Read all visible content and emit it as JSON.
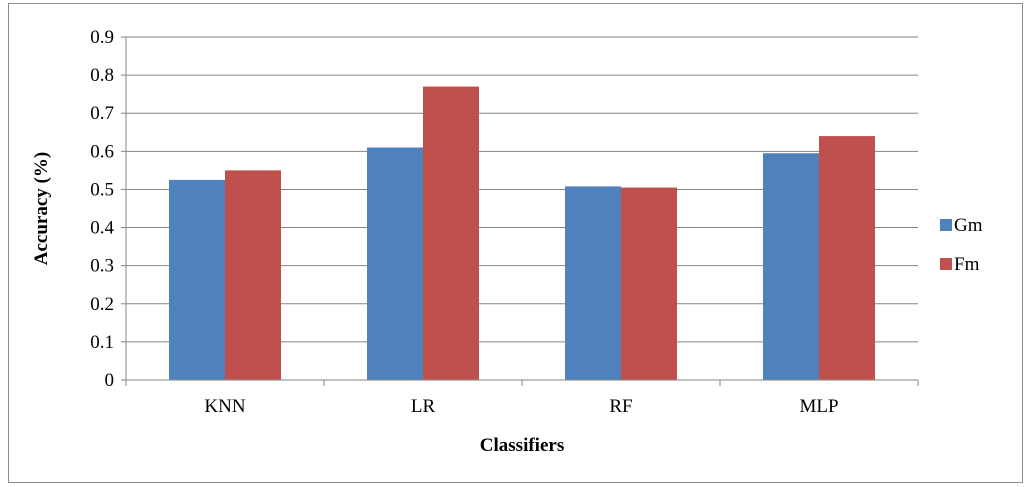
{
  "chart_data": {
    "type": "bar",
    "categories": [
      "KNN",
      "LR",
      "RF",
      "MLP"
    ],
    "series": [
      {
        "name": "Gm",
        "color": "#4f81bd",
        "values": [
          0.525,
          0.61,
          0.508,
          0.595
        ]
      },
      {
        "name": "Fm",
        "color": "#c0504d",
        "values": [
          0.55,
          0.77,
          0.505,
          0.64
        ]
      }
    ],
    "xlabel": "Classifiers",
    "ylabel": "Accuracy (%)",
    "ylim": [
      0,
      0.9
    ],
    "yticks": [
      "0",
      "0.1",
      "0.2",
      "0.3",
      "0.4",
      "0.5",
      "0.6",
      "0.7",
      "0.8",
      "0.9"
    ],
    "grid": true,
    "legend_position": "right"
  }
}
